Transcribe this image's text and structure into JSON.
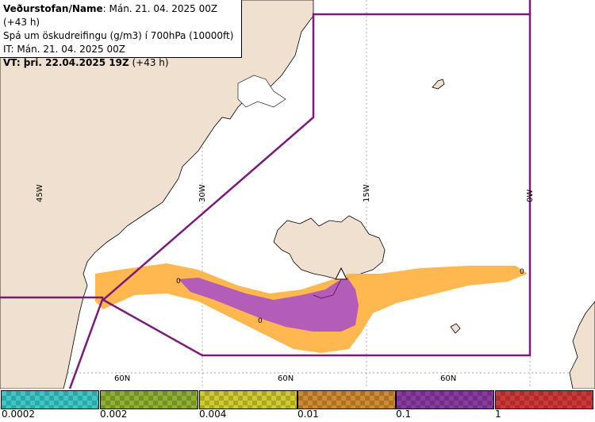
{
  "info": {
    "line1_key": "Veðurstofan/Name",
    "line1_val": ": Mán. 21. 04. 2025 00Z (+43 h)",
    "line2": "Spá um öskudreifingu (g/m3) í 700hPa (10000ft)",
    "line3": "IT: Mán. 21. 04. 2025 00Z",
    "line4_key": "VT: þri. 22.04.2025 19Z",
    "line4_val": " (+43 h)"
  },
  "grid": {
    "lon_labels": [
      "45W",
      "30W",
      "15W",
      "0W"
    ],
    "lat_labels": [
      "60N",
      "60N",
      "60N"
    ]
  },
  "contour_labels": [
    "0",
    "0",
    "0"
  ],
  "legend": {
    "ticks": [
      "0.0002",
      "0.002",
      "0.004",
      "0.01",
      "0.1",
      "1"
    ],
    "colors": [
      "#3cc8c8",
      "#8fb030",
      "#d0cc30",
      "#d08a30",
      "#8a3aa0",
      "#d03838"
    ]
  },
  "colors": {
    "land": "#f0e0d0",
    "sea": "#ffffff",
    "boundary": "#7a1a7a",
    "ash_low": "#ffb347",
    "ash_high": "#b35cb8"
  }
}
